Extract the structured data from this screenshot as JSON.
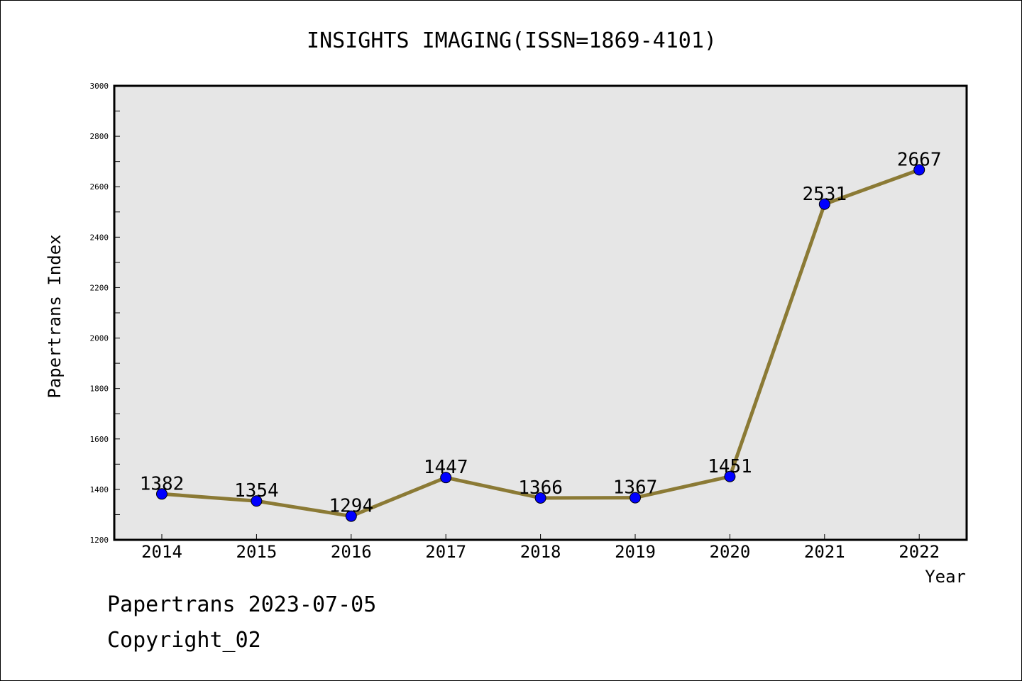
{
  "chart_data": {
    "type": "line",
    "title": "INSIGHTS IMAGING(ISSN=1869-4101)",
    "xlabel": "Year",
    "ylabel": "Papertrans Index",
    "categories": [
      "2014",
      "2015",
      "2016",
      "2017",
      "2018",
      "2019",
      "2020",
      "2021",
      "2022"
    ],
    "series": [
      {
        "values": [
          1382,
          1354,
          1294,
          1447,
          1366,
          1367,
          1451,
          2531,
          2667
        ]
      }
    ],
    "data_labels": [
      "1382",
      "1354",
      "1294",
      "1447",
      "1366",
      "1367",
      "1451",
      "2531",
      "2667"
    ],
    "ylim": [
      1200,
      3000
    ],
    "yticks": [
      "1200",
      "1400",
      "1600",
      "1800",
      "2000",
      "2200",
      "2400",
      "2600",
      "2800",
      "3000"
    ],
    "grid": false,
    "legend": "none",
    "colors": {
      "line": "#8b7a35",
      "marker": "#0000ff",
      "plot_background": "#e6e6e6"
    }
  },
  "footer": {
    "date_text": "Papertrans 2023-07-05",
    "copyright_text": "Copyright_02"
  }
}
